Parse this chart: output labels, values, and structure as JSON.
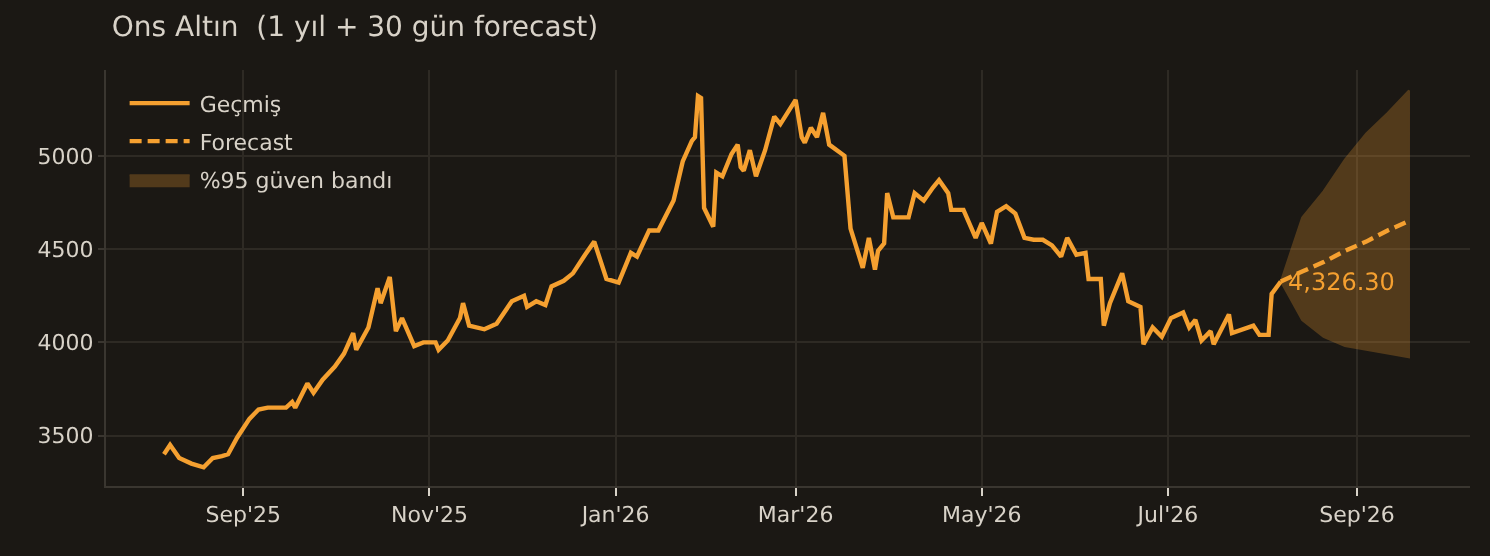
{
  "chart_data": {
    "type": "line",
    "title": "Ons Altın  (1 yıl + 30 gün forecast)",
    "xlim": [
      "2025-07-18",
      "2026-10-08"
    ],
    "xticks": [
      {
        "value": "2025-09-01",
        "label": "Sep'25"
      },
      {
        "value": "2025-11-01",
        "label": "Nov'25"
      },
      {
        "value": "2026-01-01",
        "label": "Jan'26"
      },
      {
        "value": "2026-03-01",
        "label": "Mar'26"
      },
      {
        "value": "2026-05-01",
        "label": "May'26"
      },
      {
        "value": "2026-07-01",
        "label": "Jul'26"
      },
      {
        "value": "2026-09-01",
        "label": "Sep'26"
      }
    ],
    "ylim": [
      3230,
      5460
    ],
    "yticks": [
      3500,
      4000,
      4500,
      5000
    ],
    "grid": true,
    "legend": "top left",
    "series": [
      {
        "name": "Geçmiş",
        "line_style": "solid",
        "color": "#f5a030",
        "x": [
          "2025-08-06",
          "2025-08-08",
          "2025-08-11",
          "2025-08-15",
          "2025-08-19",
          "2025-08-22",
          "2025-08-25",
          "2025-08-27",
          "2025-08-30",
          "2025-09-03",
          "2025-09-06",
          "2025-09-09",
          "2025-09-15",
          "2025-09-17",
          "2025-09-18",
          "2025-09-22",
          "2025-09-24",
          "2025-09-27",
          "2025-10-01",
          "2025-10-04",
          "2025-10-07",
          "2025-10-08",
          "2025-10-12",
          "2025-10-15",
          "2025-10-16",
          "2025-10-19",
          "2025-10-21",
          "2025-10-23",
          "2025-10-27",
          "2025-10-30",
          "2025-11-03",
          "2025-11-04",
          "2025-11-07",
          "2025-11-11",
          "2025-11-12",
          "2025-11-14",
          "2025-11-19",
          "2025-11-23",
          "2025-11-28",
          "2025-12-02",
          "2025-12-03",
          "2025-12-06",
          "2025-12-09",
          "2025-12-11",
          "2025-12-15",
          "2025-12-18",
          "2025-12-22",
          "2025-12-25",
          "2025-12-29",
          "2026-01-02",
          "2026-01-06",
          "2026-01-08",
          "2026-01-12",
          "2026-01-15",
          "2026-01-20",
          "2026-01-23",
          "2026-01-26",
          "2026-01-27",
          "2026-01-28",
          "2026-01-29",
          "2026-01-30",
          "2026-02-02",
          "2026-02-03",
          "2026-02-05",
          "2026-02-08",
          "2026-02-10",
          "2026-02-11",
          "2026-02-12",
          "2026-02-14",
          "2026-02-16",
          "2026-02-19",
          "2026-02-22",
          "2026-02-24",
          "2026-03-01",
          "2026-03-03",
          "2026-03-04",
          "2026-03-06",
          "2026-03-08",
          "2026-03-10",
          "2026-03-12",
          "2026-03-17",
          "2026-03-19",
          "2026-03-23",
          "2026-03-25",
          "2026-03-27",
          "2026-03-28",
          "2026-03-30",
          "2026-03-31",
          "2026-04-02",
          "2026-04-07",
          "2026-04-09",
          "2026-04-12",
          "2026-04-15",
          "2026-04-17",
          "2026-04-20",
          "2026-04-21",
          "2026-04-25",
          "2026-04-29",
          "2026-05-01",
          "2026-05-04",
          "2026-05-06",
          "2026-05-09",
          "2026-05-12",
          "2026-05-15",
          "2026-05-18",
          "2026-05-21",
          "2026-05-24",
          "2026-05-27",
          "2026-05-29",
          "2026-06-01",
          "2026-06-04",
          "2026-06-05",
          "2026-06-09",
          "2026-06-10",
          "2026-06-12",
          "2026-06-16",
          "2026-06-18",
          "2026-06-22",
          "2026-06-23",
          "2026-06-26",
          "2026-06-29",
          "2026-07-02",
          "2026-07-06",
          "2026-07-08",
          "2026-07-10",
          "2026-07-12",
          "2026-07-15",
          "2026-07-16",
          "2026-07-21",
          "2026-07-22",
          "2026-07-29",
          "2026-07-31",
          "2026-08-03",
          "2026-08-04",
          "2026-08-07"
        ],
        "values": [
          3400,
          3450,
          3380,
          3350,
          3330,
          3380,
          3390,
          3400,
          3490,
          3590,
          3640,
          3650,
          3650,
          3680,
          3650,
          3780,
          3730,
          3800,
          3870,
          3940,
          4050,
          3960,
          4080,
          4290,
          4210,
          4350,
          4060,
          4130,
          3980,
          4000,
          4000,
          3960,
          4010,
          4130,
          4210,
          4090,
          4070,
          4100,
          4220,
          4250,
          4190,
          4220,
          4200,
          4300,
          4330,
          4370,
          4470,
          4540,
          4340,
          4320,
          4480,
          4460,
          4600,
          4600,
          4760,
          4970,
          5080,
          5100,
          5320,
          5310,
          4720,
          4620,
          4910,
          4890,
          5010,
          5060,
          4940,
          4920,
          5030,
          4890,
          5030,
          5210,
          5170,
          5300,
          5100,
          5070,
          5150,
          5100,
          5230,
          5060,
          5000,
          4610,
          4400,
          4560,
          4390,
          4490,
          4530,
          4800,
          4670,
          4670,
          4800,
          4760,
          4830,
          4870,
          4800,
          4710,
          4710,
          4560,
          4640,
          4530,
          4700,
          4730,
          4690,
          4560,
          4550,
          4550,
          4520,
          4460,
          4560,
          4470,
          4480,
          4340,
          4340,
          4090,
          4210,
          4370,
          4220,
          4190,
          3990,
          4080,
          4030,
          4130,
          4160,
          4080,
          4120,
          4010,
          4060,
          3990,
          4150,
          4050,
          4090,
          4040,
          4040,
          4260,
          4326.3
        ]
      },
      {
        "name": "Forecast",
        "line_style": "dashed",
        "color": "#f5a030",
        "x": [
          "2026-08-07",
          "2026-08-14",
          "2026-08-21",
          "2026-08-28",
          "2026-09-04",
          "2026-09-11",
          "2026-09-18"
        ],
        "values": [
          4326.3,
          4380,
          4430,
          4490,
          4540,
          4600,
          4650
        ],
        "lower": [
          4326.3,
          4120,
          4030,
          3980,
          3960,
          3940,
          3920
        ],
        "upper": [
          4326.3,
          4670,
          4810,
          4980,
          5120,
          5230,
          5350
        ]
      }
    ],
    "annotations": [
      {
        "text": "4,326.30",
        "x": "2026-08-07",
        "y": 4326.3
      },
      "%95 güven bandı"
    ]
  }
}
